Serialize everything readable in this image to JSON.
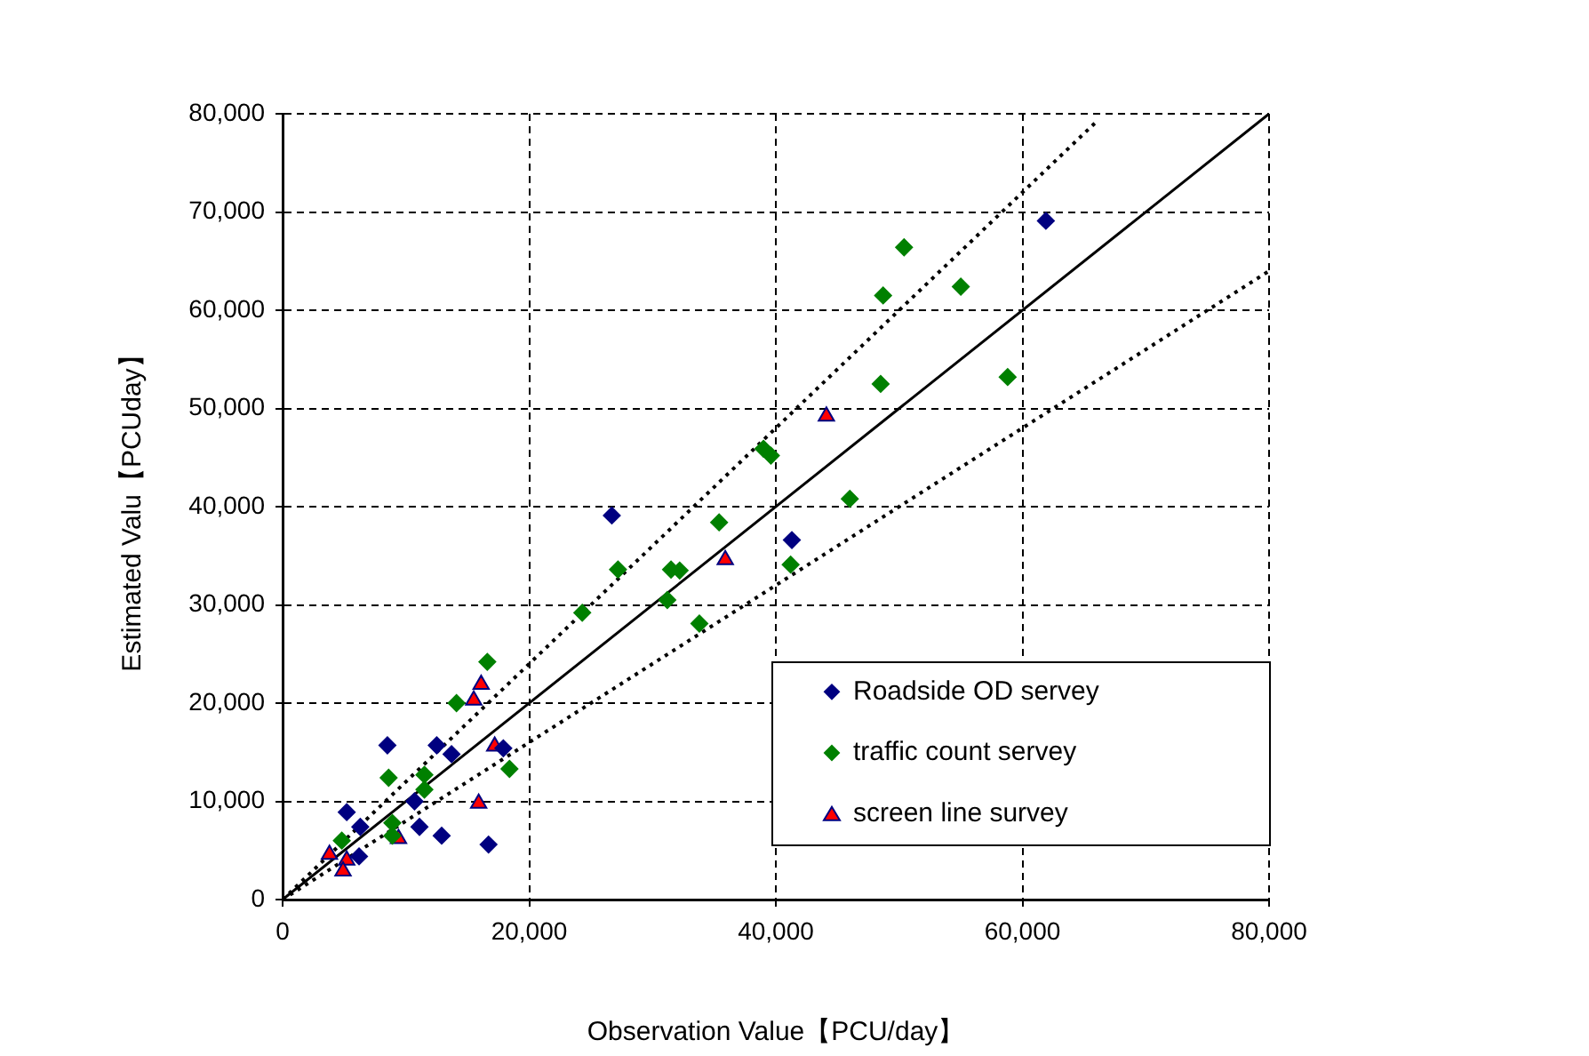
{
  "chart_data": {
    "type": "scatter",
    "xlabel": "Observation Value【PCU/day】",
    "ylabel": "Estimated Valu【PCUday】",
    "xlim": [
      0,
      80000
    ],
    "ylim": [
      0,
      80000
    ],
    "xticks": [
      {
        "value": 0,
        "label": "0"
      },
      {
        "value": 20000,
        "label": "20,000"
      },
      {
        "value": 40000,
        "label": "40,000"
      },
      {
        "value": 60000,
        "label": "60,000"
      },
      {
        "value": 80000,
        "label": "80,000"
      }
    ],
    "yticks": [
      {
        "value": 0,
        "label": "0"
      },
      {
        "value": 10000,
        "label": "10,000"
      },
      {
        "value": 20000,
        "label": "20,000"
      },
      {
        "value": 30000,
        "label": "30,000"
      },
      {
        "value": 40000,
        "label": "40,000"
      },
      {
        "value": 50000,
        "label": "50,000"
      },
      {
        "value": 60000,
        "label": "60,000"
      },
      {
        "value": 70000,
        "label": "70,000"
      },
      {
        "value": 80000,
        "label": "80,000"
      }
    ],
    "grid": true,
    "legend": "bottom right",
    "series": [
      {
        "name": "Roadside OD servey",
        "color": "#000080",
        "marker": "diamond",
        "x": [
          5200,
          8500,
          12500,
          13700,
          17900,
          10700,
          6300,
          11100,
          12900,
          16700,
          6200,
          26700,
          41300,
          61900
        ],
        "values": [
          8900,
          15700,
          15700,
          14800,
          15400,
          10000,
          7400,
          7400,
          6500,
          5600,
          4400,
          39100,
          36600,
          69100
        ]
      },
      {
        "name": "traffic count servey",
        "color": "#008000",
        "marker": "diamond",
        "x": [
          16600,
          14100,
          8600,
          11500,
          11500,
          18400,
          8900,
          8900,
          4800,
          24300,
          27200,
          35400,
          31500,
          32200,
          31200,
          33800,
          41200,
          50400,
          48700,
          55000,
          48500,
          58800,
          39000,
          39600,
          46000
        ],
        "values": [
          24200,
          20000,
          12400,
          12700,
          11200,
          13300,
          7800,
          6500,
          6000,
          29200,
          33600,
          38400,
          33600,
          33500,
          30500,
          28100,
          34100,
          66400,
          61500,
          62400,
          52500,
          53200,
          45900,
          45200,
          40800
        ]
      },
      {
        "name": "screen line survey",
        "color": "#ff0000",
        "marker": "triangle",
        "x": [
          16100,
          15500,
          17200,
          15900,
          9400,
          3800,
          5200,
          4900,
          35900,
          44100
        ],
        "values": [
          21900,
          20300,
          15600,
          9800,
          6200,
          4600,
          4000,
          2900,
          34600,
          49200
        ]
      },
      {
        "type": "line",
        "color": "#000000",
        "marker": "none",
        "line_style": "solid",
        "x": [
          0,
          80000
        ],
        "values": [
          0,
          80000
        ]
      },
      {
        "type": "line",
        "color": "#000000",
        "marker": "none",
        "line_style": "dotted",
        "x": [
          0,
          66000
        ],
        "values": [
          0,
          79200
        ]
      },
      {
        "type": "line",
        "color": "#000000",
        "marker": "none",
        "line_style": "dotted",
        "x": [
          0,
          80000
        ],
        "values": [
          0,
          64000
        ]
      }
    ]
  }
}
